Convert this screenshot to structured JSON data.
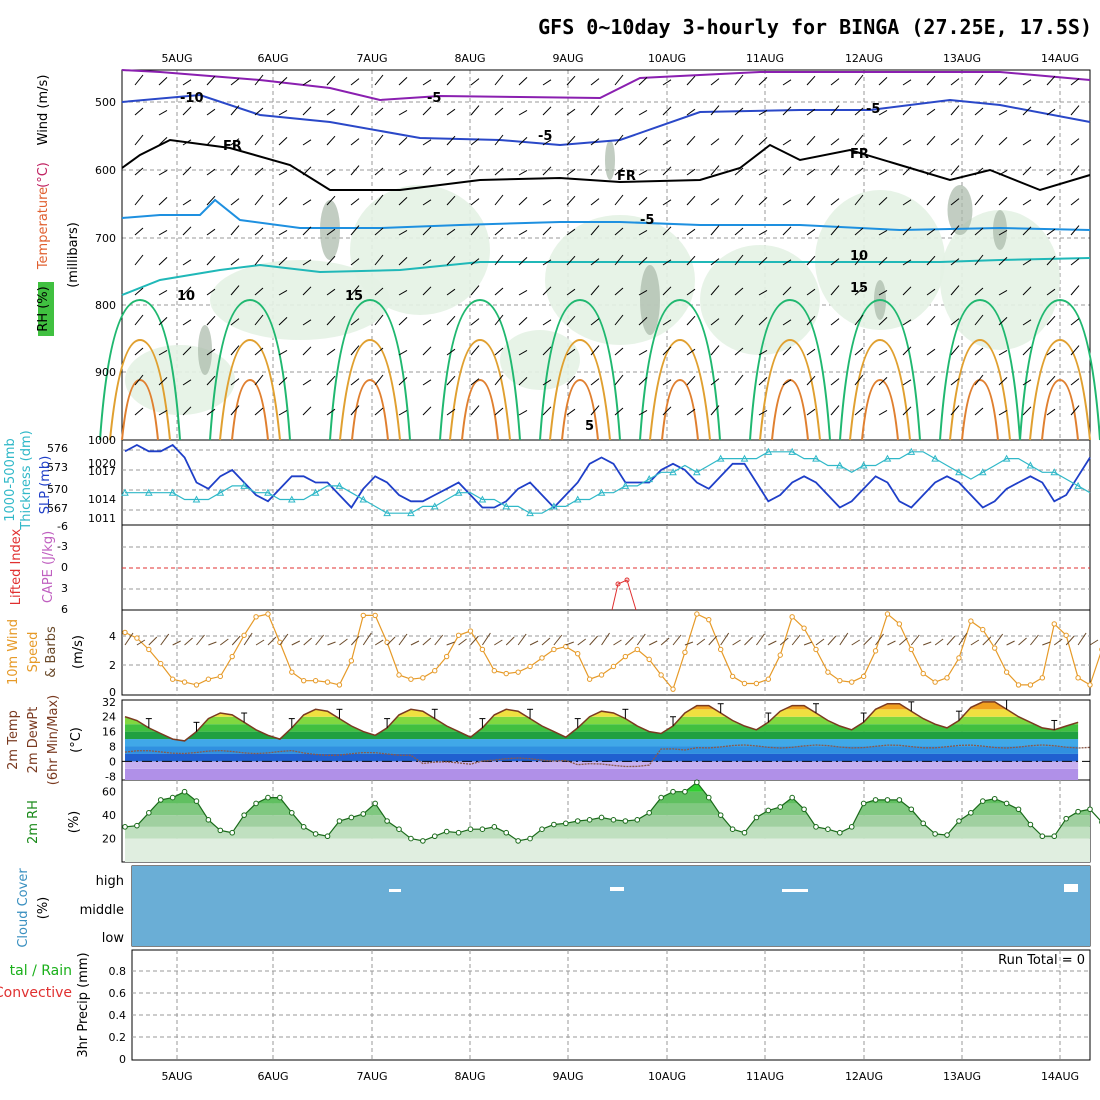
{
  "title": "GFS 0~10day 3-hourly for BINGA (27.25E, 17.5S)",
  "dates": [
    "5AUG",
    "6AUG",
    "7AUG",
    "8AUG",
    "9AUG",
    "10AUG",
    "11AUG",
    "12AUG",
    "13AUG",
    "14AUG"
  ],
  "colors": {
    "grid": "#9a9a9a",
    "temp": "#1e88e5",
    "slp": "#1f3fc8",
    "thick": "#30b8c8",
    "wind": "#e69a28",
    "rh": "#2e9e2e",
    "cloud": "#6aaed6",
    "li": "#e03030",
    "cape": "#d080d0"
  },
  "panels": {
    "upper": {
      "label_rh": "RH (%)",
      "label_temp": "Temperature",
      "label_temp_unit": "(°C)",
      "label_wind": "Wind (m/s)",
      "label_p": "(millibars)",
      "yticks": [
        "500",
        "600",
        "700",
        "800",
        "900",
        "1000"
      ],
      "contour_labels": [
        "-10",
        "-5",
        "-5",
        "-5",
        "FR",
        "FR",
        "FR",
        "-5",
        "10",
        "15",
        "10",
        "15",
        "5"
      ]
    },
    "slp": {
      "label_thick": "1000-500mb",
      "label_thick2": "Thickness (dm)",
      "label_slp": "SLP (mb)",
      "thick_ticks": [
        "576",
        "573",
        "570",
        "567"
      ],
      "slp_ticks": [
        "1020",
        "1017",
        "1014",
        "1011"
      ]
    },
    "cape": {
      "label_li": "Lifted Index",
      "label_cape": "CAPE (J/kg)",
      "ticks": [
        "-6",
        "-3",
        "0",
        "3",
        "6"
      ]
    },
    "wind": {
      "label1": "10m Wind",
      "label2": "Speed",
      "label3": "& Barbs",
      "label_unit": "(m/s)",
      "ticks": [
        "4",
        "2",
        "0"
      ]
    },
    "temp": {
      "label1": "2m Temp",
      "label2": "2m DewPt",
      "label3": "(6hr Min/Max)",
      "label_unit": "(°C)",
      "ticks": [
        "32",
        "24",
        "16",
        "8",
        "0",
        "-8"
      ]
    },
    "rh": {
      "label": "2m RH",
      "label_unit": "(%)",
      "ticks": [
        "60",
        "40",
        "20"
      ]
    },
    "cloud": {
      "label": "Cloud Cover",
      "label_unit": "(%)",
      "levels": [
        "high",
        "middle",
        "low"
      ]
    },
    "precip": {
      "label1": "tal / Rain",
      "label2": "Convective",
      "label_unit": "3hr Precip (mm)",
      "ticks": [
        "0.8",
        "0.6",
        "0.4",
        "0.2",
        "0"
      ],
      "run_total": "Run Total = 0"
    }
  },
  "chart_data": [
    {
      "type": "line",
      "name": "SLP",
      "y_unit": "mb",
      "ylim": [
        1010,
        1022
      ],
      "values": [
        1021,
        1022,
        1021,
        1021,
        1022,
        1020,
        1016,
        1015,
        1017,
        1018,
        1016,
        1014,
        1013,
        1015,
        1017,
        1017,
        1016,
        1016,
        1014,
        1012,
        1015,
        1017,
        1016,
        1014,
        1013,
        1013,
        1014,
        1015,
        1016,
        1014,
        1012,
        1012,
        1013,
        1015,
        1016,
        1014,
        1012,
        1014,
        1016,
        1019,
        1020,
        1019,
        1016,
        1016,
        1016,
        1018,
        1019,
        1018,
        1016,
        1015,
        1017,
        1019,
        1019,
        1016,
        1013,
        1014,
        1016,
        1017,
        1016,
        1014,
        1012,
        1013,
        1015,
        1017,
        1016,
        1013,
        1012,
        1014,
        1016,
        1017,
        1016,
        1014,
        1012,
        1013,
        1015,
        1016,
        1017,
        1016,
        1013,
        1014,
        1017,
        1020
      ]
    },
    {
      "type": "line",
      "name": "Thickness",
      "y_unit": "dm",
      "ylim": [
        566,
        577
      ],
      "values": [
        570,
        570,
        570,
        570,
        570,
        569,
        569,
        569,
        570,
        571,
        571,
        570,
        570,
        569,
        569,
        569,
        570,
        571,
        571,
        570,
        569,
        568,
        567,
        567,
        567,
        568,
        568,
        569,
        570,
        570,
        569,
        569,
        568,
        568,
        567,
        567,
        568,
        568,
        569,
        569,
        570,
        570,
        571,
        571,
        572,
        573,
        573,
        574,
        573,
        574,
        575,
        575,
        575,
        575,
        576,
        576,
        576,
        575,
        575,
        574,
        574,
        573,
        574,
        574,
        575,
        575,
        576,
        576,
        575,
        574,
        573,
        572,
        573,
        574,
        575,
        575,
        574,
        573,
        573,
        572,
        571,
        570
      ]
    },
    {
      "type": "line",
      "name": "10m Wind Speed",
      "y_unit": "m/s",
      "ylim": [
        0,
        5.5
      ],
      "values": [
        4.2,
        3.8,
        3.0,
        2.0,
        0.9,
        0.7,
        0.5,
        0.9,
        1.1,
        2.5,
        4.0,
        5.3,
        5.5,
        3.5,
        1.4,
        0.8,
        0.8,
        0.7,
        0.5,
        2.2,
        5.4,
        5.4,
        3.5,
        1.2,
        0.9,
        1.0,
        1.5,
        2.5,
        4.0,
        4.3,
        3.0,
        1.5,
        1.3,
        1.4,
        1.8,
        2.4,
        3.0,
        3.2,
        2.7,
        0.9,
        1.2,
        1.8,
        2.5,
        3.0,
        2.3,
        1.2,
        0.2,
        2.8,
        5.5,
        5.1,
        3.0,
        1.1,
        0.6,
        0.6,
        0.9,
        2.6,
        5.3,
        4.5,
        3.0,
        1.4,
        0.8,
        0.7,
        1.1,
        2.9,
        5.5,
        4.8,
        3.0,
        1.3,
        0.7,
        1.0,
        2.4,
        5.0,
        4.4,
        3.1,
        1.4,
        0.5,
        0.5,
        1.0,
        4.8,
        4.0,
        1.0,
        0.5,
        3.0
      ]
    },
    {
      "type": "area",
      "name": "2m Temp",
      "y_unit": "°C",
      "ylim": [
        -10,
        33
      ],
      "values": [
        24,
        22,
        18,
        15,
        12,
        11,
        16,
        23,
        26,
        25,
        21,
        17,
        14,
        12,
        18,
        25,
        28,
        27,
        23,
        19,
        16,
        14,
        18,
        25,
        28,
        27,
        23,
        19,
        16,
        13,
        18,
        25,
        28,
        27,
        23,
        19,
        16,
        13,
        18,
        24,
        27,
        26,
        23,
        19,
        16,
        15,
        19,
        26,
        30,
        30,
        26,
        22,
        19,
        17,
        21,
        27,
        30,
        30,
        26,
        22,
        19,
        17,
        21,
        28,
        31,
        31,
        27,
        23,
        20,
        18,
        22,
        29,
        32,
        32,
        28,
        24,
        21,
        18,
        17,
        19,
        21
      ]
    },
    {
      "type": "area",
      "name": "2m RH",
      "y_unit": "%",
      "ylim": [
        0,
        70
      ],
      "values": [
        30,
        31,
        42,
        53,
        55,
        60,
        52,
        36,
        27,
        25,
        40,
        50,
        55,
        55,
        42,
        30,
        24,
        22,
        35,
        38,
        41,
        50,
        35,
        28,
        20,
        18,
        22,
        26,
        25,
        28,
        28,
        30,
        25,
        18,
        20,
        28,
        32,
        33,
        35,
        36,
        38,
        36,
        35,
        36,
        42,
        55,
        60,
        60,
        68,
        55,
        40,
        28,
        25,
        38,
        44,
        47,
        55,
        45,
        30,
        28,
        25,
        30,
        50,
        53,
        53,
        53,
        45,
        33,
        24,
        23,
        35,
        42,
        52,
        54,
        50,
        45,
        32,
        22,
        22,
        37,
        43,
        45,
        34
      ]
    },
    {
      "type": "line",
      "name": "Lifted Index",
      "y_unit": "",
      "ylim": [
        -6,
        6
      ],
      "values": []
    }
  ]
}
